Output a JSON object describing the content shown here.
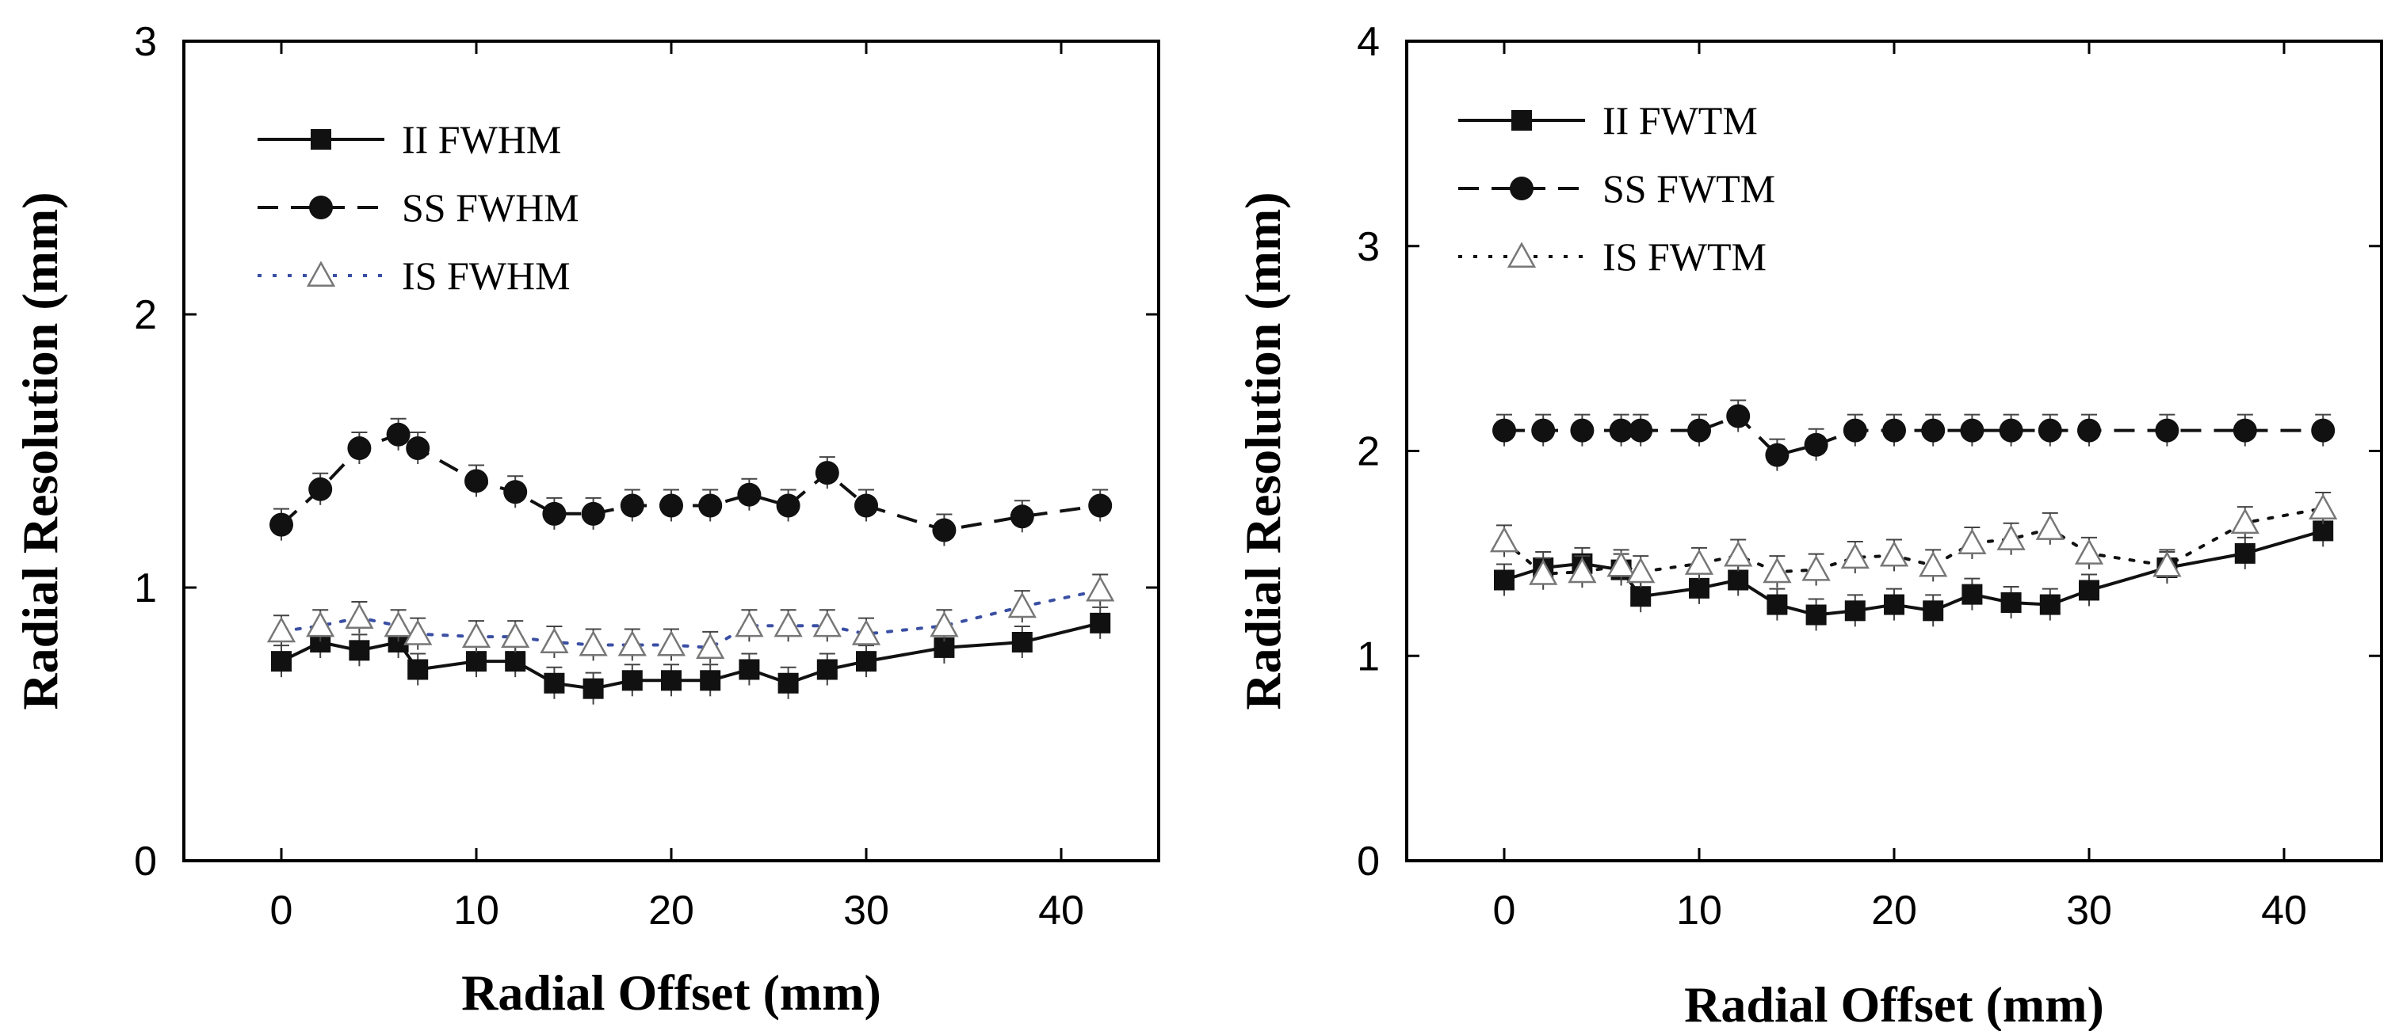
{
  "chart_data": [
    {
      "type": "line",
      "title": "",
      "xlabel": "Radial Offset (mm)",
      "ylabel": "Radial Resolution (mm)",
      "xlim": [
        -5,
        45
      ],
      "ylim": [
        0,
        3
      ],
      "xticks": [
        "0",
        "10",
        "20",
        "30",
        "40"
      ],
      "yticks": [
        "0",
        "1",
        "2",
        "3"
      ],
      "legend_position": "top-left",
      "series": [
        {
          "name": "II FWHM",
          "style": "solid",
          "marker": "square",
          "color": "#111111",
          "x": [
            0,
            2,
            4,
            6,
            7,
            10,
            12,
            14,
            16,
            18,
            20,
            22,
            24,
            26,
            28,
            30,
            34,
            38,
            42
          ],
          "y": [
            0.73,
            0.8,
            0.77,
            0.8,
            0.7,
            0.73,
            0.73,
            0.65,
            0.63,
            0.66,
            0.66,
            0.66,
            0.7,
            0.65,
            0.7,
            0.73,
            0.78,
            0.8,
            0.87
          ]
        },
        {
          "name": "SS FWHM",
          "style": "dashed",
          "marker": "circle",
          "color": "#111111",
          "x": [
            0,
            2,
            4,
            6,
            7,
            10,
            12,
            14,
            16,
            18,
            20,
            22,
            24,
            26,
            28,
            30,
            34,
            38,
            42
          ],
          "y": [
            1.23,
            1.36,
            1.51,
            1.56,
            1.51,
            1.39,
            1.35,
            1.27,
            1.27,
            1.3,
            1.3,
            1.3,
            1.34,
            1.3,
            1.42,
            1.3,
            1.21,
            1.26,
            1.3
          ]
        },
        {
          "name": "IS FWHM",
          "style": "dotted",
          "marker": "triangle",
          "color": "#3a4fa3",
          "x": [
            0,
            2,
            4,
            6,
            7,
            10,
            12,
            14,
            16,
            18,
            20,
            22,
            24,
            26,
            28,
            30,
            34,
            38,
            42
          ],
          "y": [
            0.84,
            0.86,
            0.89,
            0.86,
            0.83,
            0.82,
            0.82,
            0.8,
            0.79,
            0.79,
            0.79,
            0.78,
            0.86,
            0.86,
            0.86,
            0.83,
            0.86,
            0.93,
            0.99
          ]
        }
      ]
    },
    {
      "type": "line",
      "title": "",
      "xlabel": "Radial Offset (mm)",
      "ylabel": "Radial Resolution (mm)",
      "xlim": [
        -5,
        45
      ],
      "ylim": [
        0,
        4
      ],
      "xticks": [
        "0",
        "10",
        "20",
        "30",
        "40"
      ],
      "yticks": [
        "0",
        "1",
        "2",
        "3",
        "4"
      ],
      "legend_position": "top-left",
      "series": [
        {
          "name": "II FWTM",
          "style": "solid",
          "marker": "square",
          "color": "#111111",
          "x": [
            0,
            2,
            4,
            6,
            7,
            10,
            12,
            14,
            16,
            18,
            20,
            22,
            24,
            26,
            28,
            30,
            34,
            38,
            42
          ],
          "y": [
            1.37,
            1.43,
            1.45,
            1.42,
            1.29,
            1.33,
            1.37,
            1.25,
            1.2,
            1.22,
            1.25,
            1.22,
            1.3,
            1.26,
            1.25,
            1.32,
            1.43,
            1.5,
            1.61
          ]
        },
        {
          "name": "SS FWTM",
          "style": "dashed",
          "marker": "circle",
          "color": "#111111",
          "x": [
            0,
            2,
            4,
            6,
            7,
            10,
            12,
            14,
            16,
            18,
            20,
            22,
            24,
            26,
            28,
            30,
            34,
            38,
            42
          ],
          "y": [
            2.1,
            2.1,
            2.1,
            2.1,
            2.1,
            2.1,
            2.17,
            1.98,
            2.03,
            2.1,
            2.1,
            2.1,
            2.1,
            2.1,
            2.1,
            2.1,
            2.1,
            2.1,
            2.1
          ]
        },
        {
          "name": "IS FWTM",
          "style": "dotted",
          "marker": "triangle",
          "color": "#111111",
          "x": [
            0,
            2,
            4,
            6,
            7,
            10,
            12,
            14,
            16,
            18,
            20,
            22,
            24,
            26,
            28,
            30,
            34,
            38,
            42
          ],
          "y": [
            1.56,
            1.4,
            1.41,
            1.44,
            1.41,
            1.45,
            1.49,
            1.41,
            1.42,
            1.48,
            1.49,
            1.44,
            1.55,
            1.57,
            1.62,
            1.5,
            1.44,
            1.65,
            1.72
          ]
        }
      ]
    }
  ]
}
